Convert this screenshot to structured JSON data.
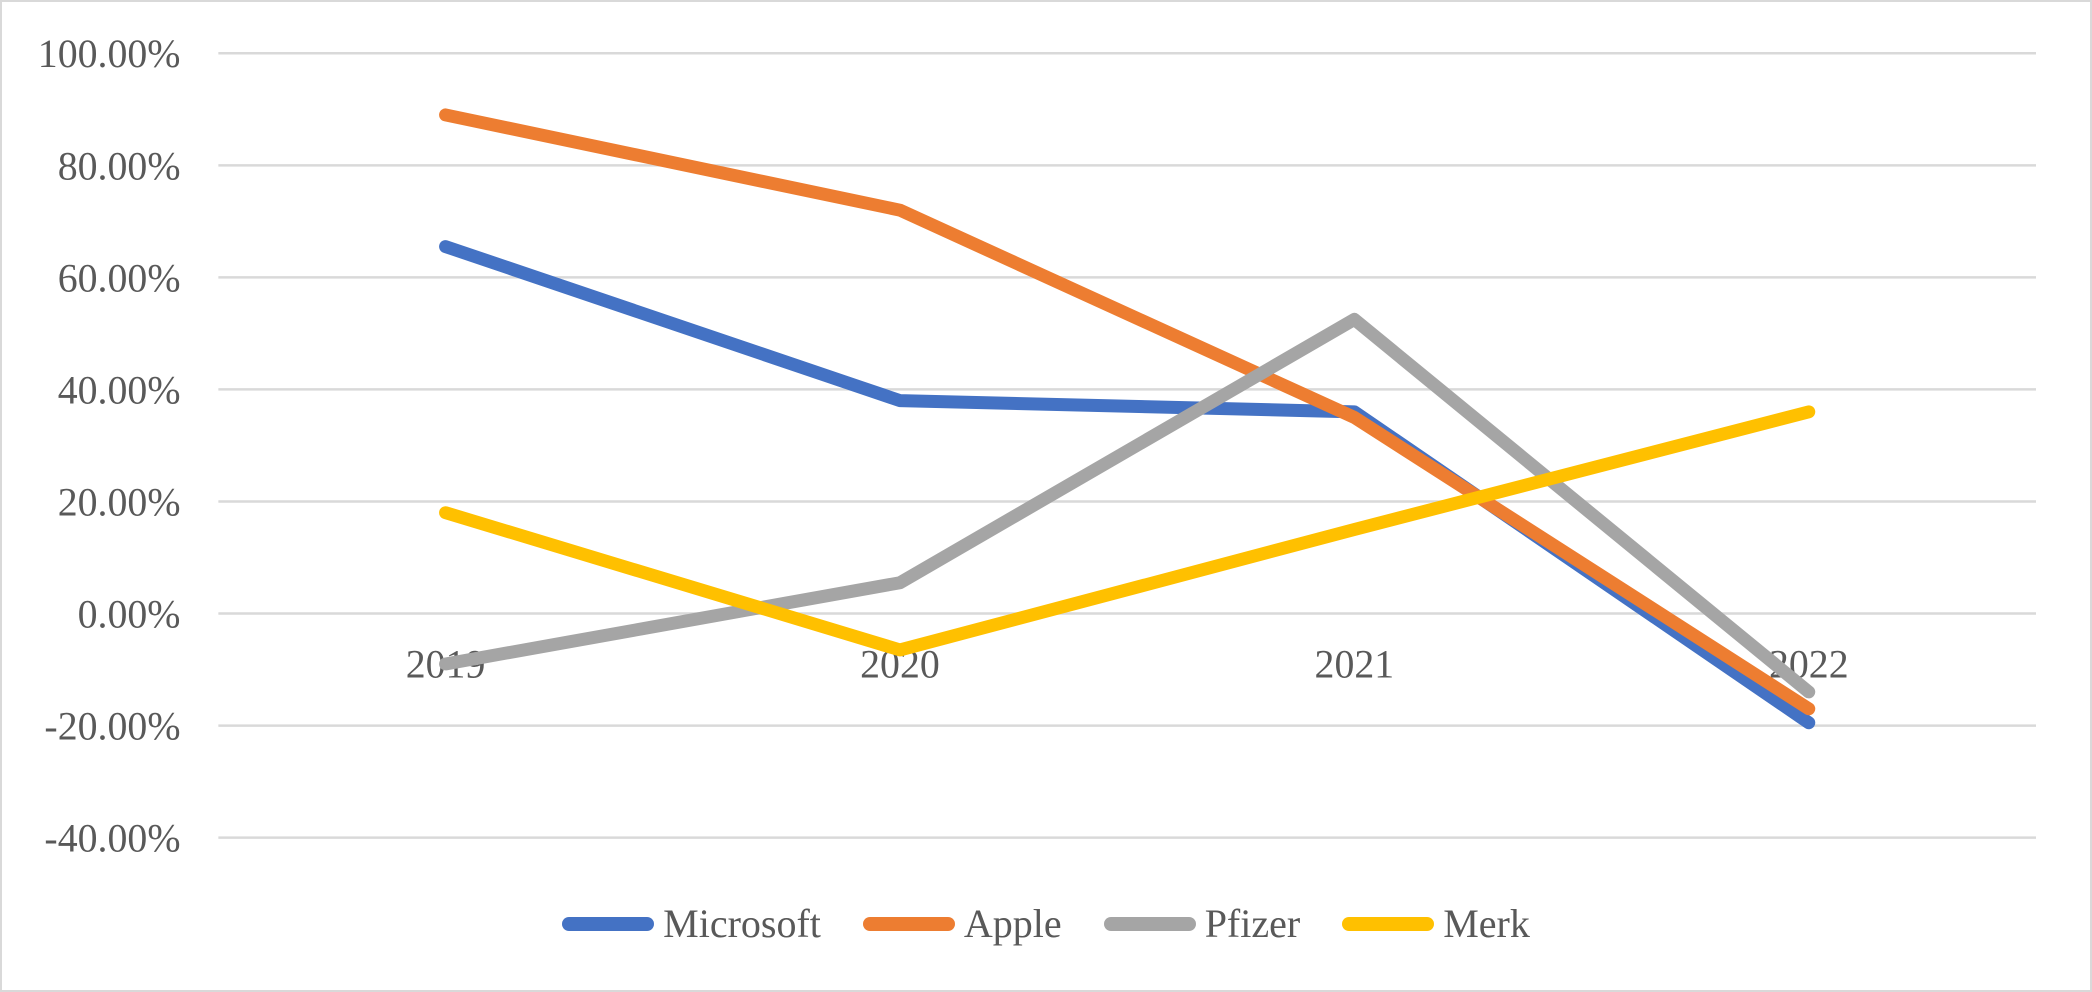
{
  "chart_data": {
    "type": "line",
    "title": "",
    "xlabel": "",
    "ylabel": "",
    "unit": "percent",
    "categories": [
      "2019",
      "2020",
      "2021",
      "2022"
    ],
    "series": [
      {
        "name": "Microsoft",
        "color": "#4472C4",
        "values": [
          65.5,
          38,
          36,
          -19.5
        ]
      },
      {
        "name": "Apple",
        "color": "#ED7D31",
        "values": [
          89,
          72,
          35,
          -17
        ]
      },
      {
        "name": "Pfizer",
        "color": "#A5A5A5",
        "values": [
          -9,
          5.5,
          52.5,
          -14
        ]
      },
      {
        "name": "Merk",
        "color": "#FFC000",
        "values": [
          18,
          -6.5,
          15,
          36
        ]
      }
    ],
    "y_tick_labels": [
      "100.00%",
      "80.00%",
      "60.00%",
      "40.00%",
      "20.00%",
      "0.00%",
      "-20.00%",
      "-40.00%"
    ],
    "y_tick_values": [
      100,
      80,
      60,
      40,
      20,
      0,
      -20,
      -40
    ],
    "ylim": [
      -40,
      100
    ],
    "grid": true,
    "legend_position": "bottom",
    "colors": {
      "grid": "#D9D9D9",
      "frame_border": "#D9D9D9",
      "axis_text": "#595959",
      "background": "#FFFFFF"
    }
  }
}
